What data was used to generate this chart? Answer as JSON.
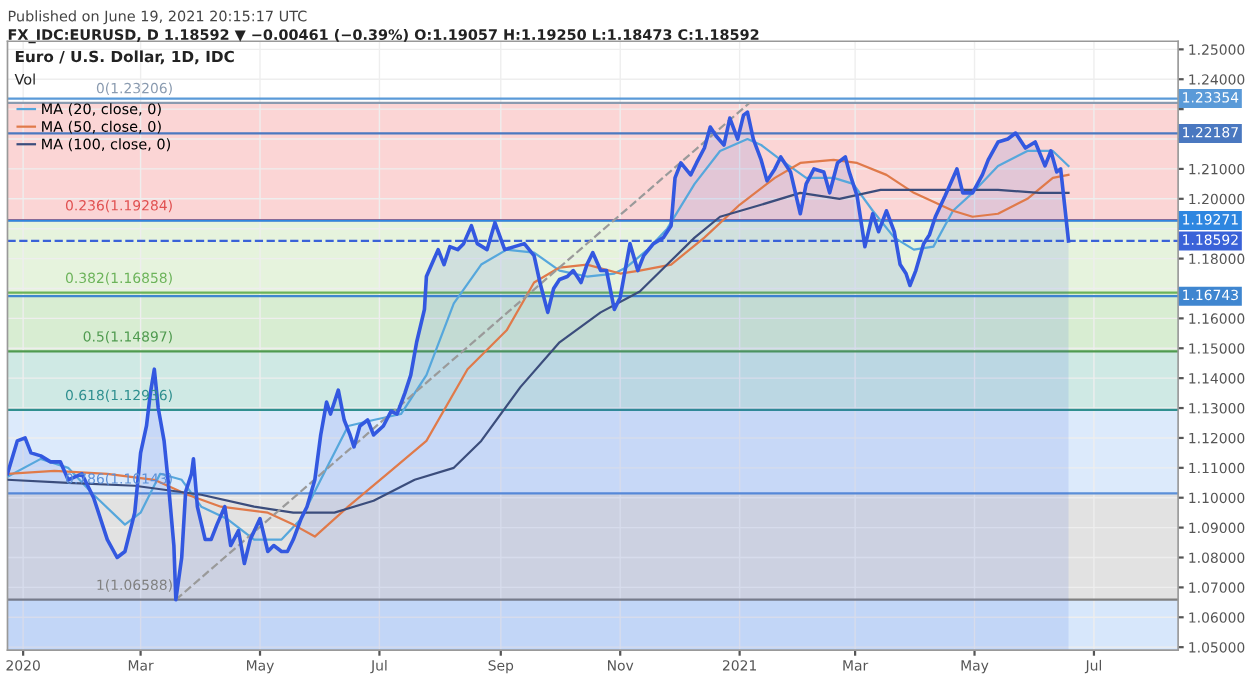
{
  "chart_data": {
    "type": "line",
    "title": "Euro / U.S. Dollar, 1D, IDC",
    "annotations": [
      "Published on June 19, 2021 20:15:17 UTC",
      "FX_IDC:EURUSD, D 1.18592 ▼ −0.00461 (−0.39%) O:1.19057 H:1.19250 L:1.18473 C:1.18592",
      "Vol",
      {
        "text": "0(1.23206)",
        "x": "2020-03-19",
        "y": 1.23206
      },
      {
        "text": "0.236(1.19284)",
        "x": "2020-03-19",
        "y": 1.19284
      },
      {
        "text": "0.382(1.16858)",
        "x": "2020-03-19",
        "y": 1.16858
      },
      {
        "text": "0.5(1.14897)",
        "x": "2020-03-19",
        "y": 1.14897
      },
      {
        "text": "0.618(1.12936)",
        "x": "2020-03-19",
        "y": 1.12936
      },
      {
        "text": "0.786(1.10143)",
        "x": "2020-03-19",
        "y": 1.10143
      },
      {
        "text": "1(1.06588)",
        "x": "2020-03-19",
        "y": 1.06588
      }
    ],
    "xlim": [
      "2019-12-24",
      "2021-08-13"
    ],
    "ylim": [
      1.049,
      1.2527
    ],
    "xticks": [
      {
        "value": "2020-01-01",
        "label": "2020"
      },
      {
        "value": "2020-03-01",
        "label": "Mar"
      },
      {
        "value": "2020-05-01",
        "label": "May"
      },
      {
        "value": "2020-07-01",
        "label": "Jul"
      },
      {
        "value": "2020-09-01",
        "label": "Sep"
      },
      {
        "value": "2020-11-01",
        "label": "Nov"
      },
      {
        "value": "2021-01-01",
        "label": "2021"
      },
      {
        "value": "2021-03-01",
        "label": "Mar"
      },
      {
        "value": "2021-05-01",
        "label": "May"
      },
      {
        "value": "2021-07-01",
        "label": "Jul"
      }
    ],
    "yticks": [
      {
        "value": 1.05,
        "label": "1.05000"
      },
      {
        "value": 1.06,
        "label": "1.06000"
      },
      {
        "value": 1.07,
        "label": "1.07000"
      },
      {
        "value": 1.08,
        "label": "1.08000"
      },
      {
        "value": 1.09,
        "label": "1.09000"
      },
      {
        "value": 1.1,
        "label": "1.10000"
      },
      {
        "value": 1.11,
        "label": "1.11000"
      },
      {
        "value": 1.12,
        "label": "1.12000"
      },
      {
        "value": 1.13,
        "label": "1.13000"
      },
      {
        "value": 1.14,
        "label": "1.14000"
      },
      {
        "value": 1.15,
        "label": "1.15000"
      },
      {
        "value": 1.16,
        "label": "1.16000"
      },
      {
        "value": 1.17,
        "label": null
      },
      {
        "value": 1.18,
        "label": "1.18000"
      },
      {
        "value": 1.19,
        "label": null
      },
      {
        "value": 1.2,
        "label": "1.20000"
      },
      {
        "value": 1.21,
        "label": "1.21000"
      },
      {
        "value": 1.22,
        "label": null
      },
      {
        "value": 1.23,
        "label": null
      },
      {
        "value": 1.24,
        "label": "1.24000"
      },
      {
        "value": 1.25,
        "label": "1.25000"
      }
    ],
    "grid": true,
    "legend": "top left",
    "bands": [
      {
        "axis": "y",
        "from": 1.19284,
        "to": 1.23206,
        "color": "#fbd5d5"
      },
      {
        "axis": "y",
        "from": 1.16858,
        "to": 1.19284,
        "color": "#e6f3dd"
      },
      {
        "axis": "y",
        "from": 1.14897,
        "to": 1.16858,
        "color": "#d8edd2"
      },
      {
        "axis": "y",
        "from": 1.12936,
        "to": 1.14897,
        "color": "#cfe9e4"
      },
      {
        "axis": "y",
        "from": 1.10143,
        "to": 1.12936,
        "color": "#dceafb"
      },
      {
        "axis": "y",
        "from": 1.06588,
        "to": 1.10143,
        "color": "#e2e2e2"
      },
      {
        "axis": "y",
        "from": 1.049,
        "to": 1.06588,
        "color": "#d7e7fb"
      }
    ],
    "ref_lines": [
      {
        "axis": "y",
        "value": 1.23206,
        "color": "#8a9bb0"
      },
      {
        "axis": "y",
        "value": 1.19284,
        "color": "#e05050"
      },
      {
        "axis": "y",
        "value": 1.16858,
        "color": "#6cb35a"
      },
      {
        "axis": "y",
        "value": 1.14897,
        "color": "#4f9a4f"
      },
      {
        "axis": "y",
        "value": 1.12936,
        "color": "#2f8f8f"
      },
      {
        "axis": "y",
        "value": 1.10143,
        "color": "#5b8fd8"
      },
      {
        "axis": "y",
        "value": 1.06588,
        "color": "#808080"
      },
      {
        "axis": "y",
        "value": 1.23354,
        "label": "1.23354",
        "color": "#5a9ad8"
      },
      {
        "axis": "y",
        "value": 1.22187,
        "label": "1.22187",
        "color": "#4a78c0"
      },
      {
        "axis": "y",
        "value": 1.19271,
        "label": "1.19271",
        "color": "#2e86e0"
      },
      {
        "axis": "y",
        "value": 1.18592,
        "label": "1.18592",
        "color": "#3a62d8",
        "line_style": "dashed"
      },
      {
        "axis": "y",
        "value": 1.16743,
        "label": "1.16743",
        "color": "#3f86d0"
      }
    ],
    "series": [
      {
        "type": "area",
        "color": "#3358e0",
        "x": [
          "2019-12-24",
          "2019-12-29",
          "2020-01-02",
          "2020-01-05",
          "2020-01-10",
          "2020-01-15",
          "2020-01-20",
          "2020-01-24",
          "2020-01-31",
          "2020-02-06",
          "2020-02-13",
          "2020-02-18",
          "2020-02-22",
          "2020-02-27",
          "2020-03-01",
          "2020-03-04",
          "2020-03-06",
          "2020-03-08",
          "2020-03-10",
          "2020-03-13",
          "2020-03-15",
          "2020-03-18",
          "2020-03-19",
          "2020-03-22",
          "2020-03-24",
          "2020-03-27",
          "2020-03-28",
          "2020-03-30",
          "2020-04-03",
          "2020-04-06",
          "2020-04-09",
          "2020-04-13",
          "2020-04-16",
          "2020-04-20",
          "2020-04-23",
          "2020-04-26",
          "2020-05-01",
          "2020-05-05",
          "2020-05-08",
          "2020-05-12",
          "2020-05-15",
          "2020-05-18",
          "2020-05-22",
          "2020-05-25",
          "2020-05-29",
          "2020-06-01",
          "2020-06-04",
          "2020-06-06",
          "2020-06-10",
          "2020-06-13",
          "2020-06-16",
          "2020-06-18",
          "2020-06-21",
          "2020-06-25",
          "2020-06-28",
          "2020-07-03",
          "2020-07-07",
          "2020-07-10",
          "2020-07-14",
          "2020-07-17",
          "2020-07-20",
          "2020-07-24",
          "2020-07-25",
          "2020-07-29",
          "2020-07-31",
          "2020-08-03",
          "2020-08-06",
          "2020-08-10",
          "2020-08-13",
          "2020-08-17",
          "2020-08-20",
          "2020-08-25",
          "2020-08-29",
          "2020-09-03",
          "2020-09-08",
          "2020-09-13",
          "2020-09-18",
          "2020-09-21",
          "2020-09-25",
          "2020-09-28",
          "2020-10-01",
          "2020-10-05",
          "2020-10-08",
          "2020-10-12",
          "2020-10-15",
          "2020-10-18",
          "2020-10-22",
          "2020-10-25",
          "2020-10-29",
          "2020-11-01",
          "2020-11-06",
          "2020-11-10",
          "2020-11-13",
          "2020-11-18",
          "2020-11-23",
          "2020-11-27",
          "2020-11-29",
          "2020-12-02",
          "2020-12-07",
          "2020-12-10",
          "2020-12-14",
          "2020-12-17",
          "2020-12-20",
          "2020-12-24",
          "2020-12-27",
          "2020-12-31",
          "2021-01-03",
          "2021-01-05",
          "2021-01-08",
          "2021-01-12",
          "2021-01-15",
          "2021-01-19",
          "2021-01-22",
          "2021-01-27",
          "2021-02-01",
          "2021-02-04",
          "2021-02-08",
          "2021-02-13",
          "2021-02-16",
          "2021-02-20",
          "2021-02-24",
          "2021-02-26",
          "2021-03-02",
          "2021-03-06",
          "2021-03-10",
          "2021-03-13",
          "2021-03-17",
          "2021-03-21",
          "2021-03-24",
          "2021-03-27",
          "2021-03-29",
          "2021-04-01",
          "2021-04-05",
          "2021-04-08",
          "2021-04-11",
          "2021-04-16",
          "2021-04-22",
          "2021-04-25",
          "2021-04-30",
          "2021-05-05",
          "2021-05-08",
          "2021-05-13",
          "2021-05-18",
          "2021-05-22",
          "2021-05-27",
          "2021-06-01",
          "2021-06-06",
          "2021-06-09",
          "2021-06-12",
          "2021-06-14",
          "2021-06-16",
          "2021-06-18"
        ],
        "values": [
          1.108,
          1.119,
          1.12,
          1.115,
          1.114,
          1.112,
          1.112,
          1.106,
          1.108,
          1.1,
          1.086,
          1.08,
          1.082,
          1.095,
          1.115,
          1.124,
          1.135,
          1.143,
          1.13,
          1.119,
          1.106,
          1.084,
          1.06588,
          1.08,
          1.102,
          1.108,
          1.113,
          1.097,
          1.086,
          1.086,
          1.091,
          1.097,
          1.084,
          1.089,
          1.078,
          1.086,
          1.093,
          1.082,
          1.084,
          1.082,
          1.082,
          1.086,
          1.093,
          1.097,
          1.106,
          1.121,
          1.132,
          1.128,
          1.136,
          1.126,
          1.121,
          1.117,
          1.124,
          1.126,
          1.121,
          1.124,
          1.129,
          1.128,
          1.135,
          1.141,
          1.152,
          1.163,
          1.174,
          1.18,
          1.183,
          1.178,
          1.184,
          1.183,
          1.185,
          1.191,
          1.185,
          1.183,
          1.192,
          1.183,
          1.184,
          1.185,
          1.181,
          1.172,
          1.162,
          1.17,
          1.173,
          1.174,
          1.176,
          1.172,
          1.178,
          1.182,
          1.176,
          1.176,
          1.163,
          1.167,
          1.185,
          1.176,
          1.181,
          1.185,
          1.187,
          1.191,
          1.207,
          1.212,
          1.208,
          1.212,
          1.217,
          1.224,
          1.221,
          1.218,
          1.227,
          1.22,
          1.228,
          1.229,
          1.22,
          1.213,
          1.206,
          1.21,
          1.214,
          1.209,
          1.195,
          1.205,
          1.21,
          1.209,
          1.202,
          1.212,
          1.214,
          1.209,
          1.201,
          1.184,
          1.195,
          1.189,
          1.196,
          1.189,
          1.178,
          1.175,
          1.171,
          1.176,
          1.185,
          1.188,
          1.194,
          1.201,
          1.21,
          1.202,
          1.202,
          1.208,
          1.213,
          1.219,
          1.22,
          1.222,
          1.217,
          1.219,
          1.211,
          1.216,
          1.209,
          1.21,
          1.198,
          1.18592
        ]
      },
      {
        "name": "MA (20, close, 0)",
        "color": "#56a7dc",
        "x": [
          "2019-12-24",
          "2020-01-10",
          "2020-01-24",
          "2020-02-06",
          "2020-02-22",
          "2020-03-01",
          "2020-03-11",
          "2020-03-22",
          "2020-04-01",
          "2020-04-14",
          "2020-04-28",
          "2020-05-12",
          "2020-05-22",
          "2020-06-01",
          "2020-06-15",
          "2020-06-28",
          "2020-07-12",
          "2020-07-25",
          "2020-08-08",
          "2020-08-22",
          "2020-09-04",
          "2020-09-18",
          "2020-10-01",
          "2020-10-15",
          "2020-10-29",
          "2020-11-04",
          "2020-11-15",
          "2020-11-25",
          "2020-12-09",
          "2020-12-22",
          "2021-01-05",
          "2021-01-12",
          "2021-01-22",
          "2021-02-04",
          "2021-02-18",
          "2021-02-28",
          "2021-03-10",
          "2021-03-21",
          "2021-03-31",
          "2021-04-10",
          "2021-04-20",
          "2021-04-30",
          "2021-05-13",
          "2021-05-28",
          "2021-06-10",
          "2021-06-18"
        ],
        "values": [
          1.107,
          1.113,
          1.11,
          1.101,
          1.091,
          1.095,
          1.108,
          1.106,
          1.097,
          1.093,
          1.086,
          1.086,
          1.093,
          1.106,
          1.124,
          1.126,
          1.128,
          1.141,
          1.165,
          1.178,
          1.183,
          1.182,
          1.176,
          1.174,
          1.175,
          1.177,
          1.183,
          1.19,
          1.205,
          1.216,
          1.22,
          1.218,
          1.213,
          1.207,
          1.207,
          1.205,
          1.196,
          1.187,
          1.183,
          1.184,
          1.196,
          1.202,
          1.211,
          1.216,
          1.216,
          1.211
        ]
      },
      {
        "name": "MA (50, close, 0)",
        "color": "#e07a4a",
        "x": [
          "2019-12-24",
          "2020-01-17",
          "2020-02-13",
          "2020-03-08",
          "2020-03-25",
          "2020-04-11",
          "2020-05-05",
          "2020-05-18",
          "2020-05-29",
          "2020-06-15",
          "2020-07-05",
          "2020-07-25",
          "2020-08-15",
          "2020-09-04",
          "2020-09-18",
          "2020-10-01",
          "2020-10-15",
          "2020-11-01",
          "2020-11-11",
          "2020-11-27",
          "2020-12-14",
          "2021-01-01",
          "2021-01-19",
          "2021-02-01",
          "2021-02-18",
          "2021-03-02",
          "2021-03-17",
          "2021-03-31",
          "2021-04-20",
          "2021-04-30",
          "2021-05-13",
          "2021-05-28",
          "2021-06-10",
          "2021-06-18"
        ],
        "values": [
          1.108,
          1.109,
          1.108,
          1.106,
          1.101,
          1.097,
          1.095,
          1.091,
          1.087,
          1.097,
          1.108,
          1.119,
          1.143,
          1.156,
          1.172,
          1.177,
          1.178,
          1.175,
          1.176,
          1.178,
          1.187,
          1.198,
          1.207,
          1.212,
          1.213,
          1.212,
          1.208,
          1.202,
          1.196,
          1.194,
          1.195,
          1.2,
          1.207,
          1.208
        ]
      },
      {
        "name": "MA (100, close, 0)",
        "color": "#3b4d7c",
        "x": [
          "2019-12-24",
          "2020-01-24",
          "2020-02-27",
          "2020-04-01",
          "2020-04-28",
          "2020-05-18",
          "2020-06-08",
          "2020-06-28",
          "2020-07-19",
          "2020-08-08",
          "2020-08-22",
          "2020-09-11",
          "2020-10-01",
          "2020-10-22",
          "2020-11-11",
          "2020-11-25",
          "2020-12-09",
          "2020-12-22",
          "2021-01-12",
          "2021-02-01",
          "2021-02-21",
          "2021-03-14",
          "2021-04-03",
          "2021-04-23",
          "2021-05-13",
          "2021-06-03",
          "2021-06-18"
        ],
        "values": [
          1.106,
          1.105,
          1.104,
          1.101,
          1.097,
          1.095,
          1.095,
          1.099,
          1.106,
          1.11,
          1.119,
          1.137,
          1.152,
          1.162,
          1.169,
          1.178,
          1.187,
          1.194,
          1.198,
          1.202,
          1.2,
          1.203,
          1.203,
          1.203,
          1.203,
          1.202,
          1.202
        ]
      },
      {
        "color": "#9a9a9a",
        "line_style": "dashed",
        "x": [
          "2020-03-19",
          "2021-01-06"
        ],
        "values": [
          1.06588,
          1.23206
        ]
      }
    ]
  }
}
